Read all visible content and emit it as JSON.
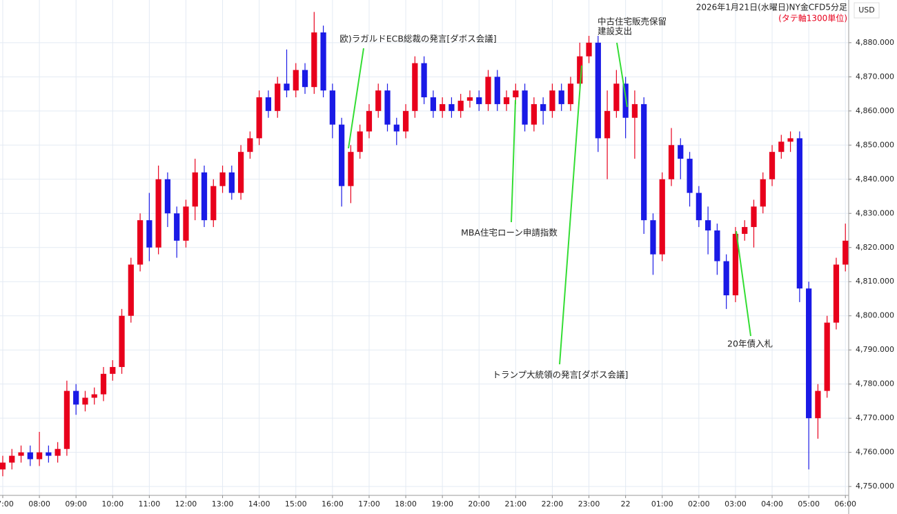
{
  "chart_data": {
    "type": "candlestick",
    "title": "2026年1月21日(水曜日)NY金CFD5分足",
    "subtitle": "(タテ軸1300単位)",
    "currency": "USD",
    "up_color": "#e8001c",
    "down_color": "#1a1ae6",
    "grid": true,
    "xlim": [
      6.925,
      30.09
    ],
    "ylim": [
      4747.4,
      4892.5
    ],
    "xticks": [
      {
        "value": 7,
        "label": "07:00"
      },
      {
        "value": 8,
        "label": "08:00"
      },
      {
        "value": 9,
        "label": "09:00"
      },
      {
        "value": 10,
        "label": "10:00"
      },
      {
        "value": 11,
        "label": "11:00"
      },
      {
        "value": 12,
        "label": "12:00"
      },
      {
        "value": 13,
        "label": "13:00"
      },
      {
        "value": 14,
        "label": "14:00"
      },
      {
        "value": 15,
        "label": "15:00"
      },
      {
        "value": 16,
        "label": "16:00"
      },
      {
        "value": 17,
        "label": "17:00"
      },
      {
        "value": 18,
        "label": "18:00"
      },
      {
        "value": 19,
        "label": "19:00"
      },
      {
        "value": 20,
        "label": "20:00"
      },
      {
        "value": 21,
        "label": "21:00"
      },
      {
        "value": 22,
        "label": "22:00"
      },
      {
        "value": 23,
        "label": "23:00"
      },
      {
        "value": 24,
        "label": "22"
      },
      {
        "value": 25,
        "label": "01:00"
      },
      {
        "value": 26,
        "label": "02:00"
      },
      {
        "value": 27,
        "label": "03:00"
      },
      {
        "value": 28,
        "label": "04:00"
      },
      {
        "value": 29,
        "label": "05:00"
      },
      {
        "value": 30,
        "label": "06:00"
      }
    ],
    "yticks": [
      {
        "value": 4750,
        "label": "4,750.000"
      },
      {
        "value": 4760,
        "label": "4,760.000"
      },
      {
        "value": 4770,
        "label": "4,770.000"
      },
      {
        "value": 4780,
        "label": "4,780.000"
      },
      {
        "value": 4790,
        "label": "4,790.000"
      },
      {
        "value": 4800,
        "label": "4,800.000"
      },
      {
        "value": 4810,
        "label": "4,810.000"
      },
      {
        "value": 4820,
        "label": "4,820.000"
      },
      {
        "value": 4830,
        "label": "4,830.000"
      },
      {
        "value": 4840,
        "label": "4,840.000"
      },
      {
        "value": 4850,
        "label": "4,850.000"
      },
      {
        "value": 4860,
        "label": "4,860.000"
      },
      {
        "value": 4870,
        "label": "4,870.000"
      },
      {
        "value": 4880,
        "label": "4,880.000"
      }
    ],
    "x": [
      7,
      7.25,
      7.5,
      7.75,
      8,
      8.25,
      8.5,
      8.75,
      9,
      9.25,
      9.5,
      9.75,
      10,
      10.25,
      10.5,
      10.75,
      11,
      11.25,
      11.5,
      11.75,
      12,
      12.25,
      12.5,
      12.75,
      13,
      13.25,
      13.5,
      13.75,
      14,
      14.25,
      14.5,
      14.75,
      15,
      15.25,
      15.5,
      15.75,
      16,
      16.25,
      16.5,
      16.75,
      17,
      17.25,
      17.5,
      17.75,
      18,
      18.25,
      18.5,
      18.75,
      19,
      19.25,
      19.5,
      19.75,
      20,
      20.25,
      20.5,
      20.75,
      21,
      21.25,
      21.5,
      21.75,
      22,
      22.25,
      22.5,
      22.75,
      23,
      23.25,
      23.5,
      23.75,
      24,
      24.25,
      24.5,
      24.75,
      25,
      25.25,
      25.5,
      25.75,
      26,
      26.25,
      26.5,
      26.75,
      27,
      27.25,
      27.5,
      27.75,
      28,
      28.25,
      28.5,
      28.75,
      29,
      29.25,
      29.5,
      29.75,
      30
    ],
    "open": [
      4755,
      4757,
      4759,
      4760,
      4758,
      4760,
      4759,
      4761,
      4778,
      4774,
      4776,
      4777,
      4783,
      4785,
      4800,
      4815,
      4828,
      4820,
      4840,
      4830,
      4822,
      4832,
      4842,
      4828,
      4838,
      4842,
      4836,
      4848,
      4852,
      4864,
      4860,
      4868,
      4866,
      4872,
      4867,
      4883,
      4866,
      4856,
      4838,
      4848,
      4854,
      4860,
      4866,
      4856,
      4854,
      4860,
      4874,
      4864,
      4860,
      4862,
      4860,
      4863,
      4864,
      4862,
      4870,
      4862,
      4864,
      4866,
      4856,
      4862,
      4860,
      4866,
      4862,
      4868,
      4876,
      4880,
      4852,
      4860,
      4868,
      4858,
      4862,
      4828,
      4818,
      4840,
      4850,
      4846,
      4836,
      4828,
      4825,
      4816,
      4806,
      4824,
      4826,
      4832,
      4840,
      4848,
      4851,
      4852,
      4808,
      4770,
      4778,
      4798,
      4815
    ],
    "high": [
      4759,
      4761,
      4762,
      4762,
      4766,
      4762,
      4763,
      4781,
      4780,
      4778,
      4779,
      4785,
      4787,
      4802,
      4817,
      4830,
      4836,
      4844,
      4842,
      4832,
      4834,
      4846,
      4844,
      4840,
      4844,
      4844,
      4850,
      4854,
      4866,
      4866,
      4870,
      4878,
      4874,
      4874,
      4889,
      4885,
      4868,
      4858,
      4850,
      4856,
      4862,
      4868,
      4868,
      4858,
      4862,
      4876,
      4876,
      4866,
      4864,
      4864,
      4865,
      4866,
      4866,
      4872,
      4872,
      4866,
      4868,
      4868,
      4864,
      4864,
      4868,
      4868,
      4870,
      4880,
      4882,
      4882,
      4866,
      4872,
      4870,
      4866,
      4864,
      4830,
      4842,
      4855,
      4852,
      4848,
      4838,
      4832,
      4827,
      4818,
      4826,
      4828,
      4834,
      4842,
      4850,
      4853,
      4854,
      4854,
      4810,
      4780,
      4800,
      4817,
      4827
    ],
    "low": [
      4753,
      4755,
      4757,
      4756,
      4756,
      4757,
      4757,
      4759,
      4771,
      4772,
      4774,
      4775,
      4781,
      4783,
      4798,
      4813,
      4816,
      4818,
      4826,
      4817,
      4820,
      4828,
      4826,
      4826,
      4836,
      4834,
      4834,
      4846,
      4850,
      4858,
      4858,
      4864,
      4864,
      4865,
      4865,
      4864,
      4852,
      4832,
      4833,
      4846,
      4852,
      4858,
      4854,
      4850,
      4852,
      4858,
      4862,
      4858,
      4858,
      4858,
      4858,
      4861,
      4860,
      4860,
      4860,
      4860,
      4862,
      4854,
      4854,
      4856,
      4858,
      4860,
      4860,
      4866,
      4874,
      4848,
      4840,
      4858,
      4852,
      4846,
      4824,
      4812,
      4816,
      4838,
      4840,
      4832,
      4826,
      4818,
      4812,
      4802,
      4804,
      4822,
      4820,
      4830,
      4838,
      4846,
      4848,
      4804,
      4755,
      4764,
      4776,
      4796,
      4813
    ],
    "close": [
      4757,
      4759,
      4760,
      4758,
      4760,
      4759,
      4761,
      4778,
      4774,
      4776,
      4777,
      4783,
      4785,
      4800,
      4815,
      4828,
      4820,
      4840,
      4830,
      4822,
      4832,
      4842,
      4828,
      4838,
      4842,
      4836,
      4848,
      4852,
      4864,
      4860,
      4868,
      4866,
      4872,
      4867,
      4883,
      4866,
      4856,
      4838,
      4848,
      4854,
      4860,
      4866,
      4856,
      4854,
      4860,
      4874,
      4864,
      4860,
      4862,
      4860,
      4863,
      4864,
      4862,
      4870,
      4862,
      4864,
      4866,
      4856,
      4862,
      4860,
      4866,
      4862,
      4868,
      4876,
      4880,
      4852,
      4860,
      4868,
      4858,
      4862,
      4828,
      4818,
      4840,
      4850,
      4846,
      4836,
      4828,
      4825,
      4816,
      4806,
      4824,
      4826,
      4832,
      4840,
      4848,
      4851,
      4852,
      4808,
      4770,
      4778,
      4798,
      4815,
      4822
    ],
    "annotations": [
      {
        "text": [
          "欧)ラガルドECB総裁の発言[ダボス会議]"
        ]
      },
      {
        "text": [
          "MBA住宅ローン申請指数"
        ]
      },
      {
        "text": [
          "トランプ大統領の発言[ダボス会議]"
        ]
      },
      {
        "text": [
          "中古住宅販売保留",
          "建設支出"
        ]
      },
      {
        "text": [
          "20年債入札"
        ]
      }
    ]
  }
}
